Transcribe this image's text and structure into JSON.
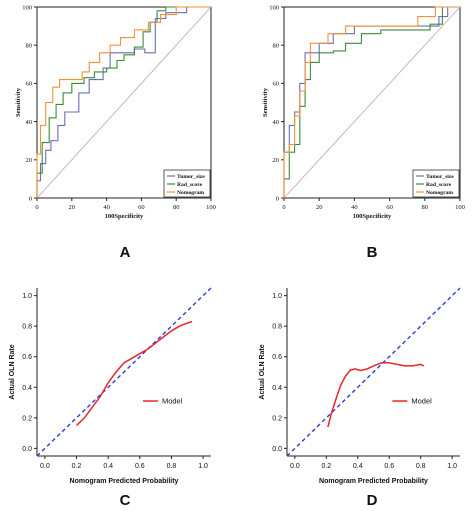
{
  "chart_data": [
    {
      "type": "line",
      "panel_label": "A",
      "xlabel": "100Specificity",
      "ylabel": "Sensitivity",
      "xlim": [
        0,
        100
      ],
      "ylim": [
        0,
        100
      ],
      "xticks": [
        "0",
        "20",
        "40",
        "60",
        "80",
        "100"
      ],
      "yticks": [
        "0",
        "20",
        "40",
        "60",
        "80",
        "100"
      ],
      "legend_position": "bottom-right",
      "diagonal_color": "#c9a9b0",
      "series": [
        {
          "name": "Tumor_size",
          "color": "#6a6fb5",
          "step": true,
          "x": [
            0,
            0,
            2,
            2,
            5,
            5,
            8,
            8,
            12,
            12,
            16,
            16,
            24,
            24,
            30,
            30,
            38,
            38,
            42,
            42,
            56,
            56,
            62,
            62,
            68,
            68,
            74,
            74,
            86,
            86,
            100
          ],
          "y": [
            0,
            9,
            9,
            18,
            18,
            25,
            25,
            30,
            30,
            38,
            38,
            45,
            45,
            55,
            55,
            62,
            62,
            68,
            68,
            76,
            76,
            78,
            78,
            76,
            76,
            94,
            94,
            97,
            97,
            100,
            100
          ]
        },
        {
          "name": "Rad_score",
          "color": "#3f8a3a",
          "step": true,
          "x": [
            0,
            0,
            3,
            3,
            7,
            7,
            11,
            11,
            15,
            15,
            20,
            20,
            27,
            27,
            33,
            33,
            40,
            40,
            46,
            46,
            50,
            50,
            56,
            56,
            61,
            61,
            65,
            65,
            69,
            69,
            74,
            74,
            86,
            86,
            100
          ],
          "y": [
            0,
            13,
            13,
            29,
            29,
            42,
            42,
            49,
            49,
            55,
            55,
            60,
            60,
            63,
            63,
            66,
            66,
            68,
            68,
            72,
            72,
            75,
            75,
            79,
            79,
            87,
            87,
            92,
            92,
            98,
            98,
            100,
            100,
            100,
            100
          ]
        },
        {
          "name": "Nomogram",
          "color": "#f2913a",
          "step": true,
          "x": [
            0,
            0,
            2,
            2,
            5,
            5,
            9,
            9,
            13,
            13,
            20,
            20,
            26,
            26,
            30,
            30,
            36,
            36,
            42,
            42,
            48,
            48,
            56,
            56,
            64,
            64,
            71,
            71,
            80,
            80,
            100
          ],
          "y": [
            0,
            23,
            23,
            38,
            38,
            50,
            50,
            58,
            58,
            62,
            62,
            62,
            62,
            66,
            66,
            71,
            71,
            76,
            76,
            80,
            80,
            84,
            84,
            88,
            88,
            92,
            92,
            96,
            96,
            100,
            100
          ]
        }
      ]
    },
    {
      "type": "line",
      "panel_label": "B",
      "xlabel": "100Specificity",
      "ylabel": "Sensitivity",
      "xlim": [
        0,
        100
      ],
      "ylim": [
        0,
        100
      ],
      "xticks": [
        "0",
        "20",
        "40",
        "60",
        "80",
        "100"
      ],
      "yticks": [
        "0",
        "20",
        "40",
        "60",
        "80",
        "100"
      ],
      "legend_position": "bottom-right",
      "diagonal_color": "#c9a9b0",
      "series": [
        {
          "name": "Tumor_size",
          "color": "#6a6fb5",
          "step": true,
          "x": [
            0,
            0,
            3,
            3,
            6,
            6,
            9,
            9,
            12,
            12,
            20,
            20,
            28,
            28,
            40,
            40,
            45,
            45,
            88,
            88,
            93,
            93,
            100
          ],
          "y": [
            0,
            24,
            24,
            38,
            38,
            45,
            45,
            60,
            60,
            76,
            76,
            81,
            81,
            86,
            86,
            90,
            90,
            90,
            90,
            95,
            95,
            100,
            100
          ]
        },
        {
          "name": "Rad_score",
          "color": "#3f8a3a",
          "step": true,
          "x": [
            0,
            0,
            3,
            3,
            6,
            6,
            9,
            9,
            12,
            12,
            15,
            15,
            20,
            20,
            28,
            28,
            35,
            35,
            44,
            44,
            55,
            55,
            66,
            66,
            75,
            75,
            83,
            83,
            90,
            90,
            100
          ],
          "y": [
            0,
            10,
            10,
            24,
            24,
            28,
            28,
            48,
            48,
            62,
            62,
            71,
            71,
            76,
            76,
            77,
            77,
            81,
            81,
            86,
            86,
            88,
            88,
            88,
            88,
            88,
            88,
            91,
            91,
            100,
            100
          ]
        },
        {
          "name": "Nomogram",
          "color": "#f2913a",
          "step": true,
          "x": [
            0,
            0,
            3,
            3,
            6,
            6,
            9,
            9,
            12,
            12,
            15,
            15,
            25,
            25,
            35,
            35,
            62,
            62,
            76,
            76,
            86,
            86,
            100
          ],
          "y": [
            0,
            24,
            24,
            28,
            28,
            43,
            43,
            56,
            56,
            71,
            71,
            81,
            81,
            86,
            86,
            90,
            90,
            90,
            90,
            95,
            95,
            100,
            100
          ]
        }
      ]
    },
    {
      "type": "line",
      "panel_label": "C",
      "xlabel": "Nomogram Predicted Probability",
      "ylabel": "Actual OLN Rate",
      "xlim": [
        -0.05,
        1.05
      ],
      "ylim": [
        -0.05,
        1.05
      ],
      "xticks": [
        "0.0",
        "0.2",
        "0.4",
        "0.6",
        "0.8",
        "1.0"
      ],
      "yticks": [
        "0.0",
        "0.2",
        "0.4",
        "0.6",
        "0.8",
        "1.0"
      ],
      "legend_position": "center-right",
      "diagonal_color": "#2b3fd6",
      "series": [
        {
          "name": "Model",
          "color": "#e8252a",
          "step": false,
          "x": [
            0.2,
            0.25,
            0.3,
            0.35,
            0.4,
            0.45,
            0.5,
            0.55,
            0.6,
            0.65,
            0.7,
            0.75,
            0.8,
            0.85,
            0.9,
            0.93
          ],
          "y": [
            0.15,
            0.2,
            0.27,
            0.34,
            0.43,
            0.5,
            0.56,
            0.59,
            0.62,
            0.65,
            0.69,
            0.73,
            0.77,
            0.8,
            0.82,
            0.83
          ]
        }
      ]
    },
    {
      "type": "line",
      "panel_label": "D",
      "xlabel": "Nomogram Predicted Probability",
      "ylabel": "Actual OLN Rate",
      "xlim": [
        -0.05,
        1.05
      ],
      "ylim": [
        -0.05,
        1.05
      ],
      "xticks": [
        "0.0",
        "0.2",
        "0.4",
        "0.6",
        "0.8",
        "1.0"
      ],
      "yticks": [
        "0.0",
        "0.2",
        "0.4",
        "0.6",
        "0.8",
        "1.0"
      ],
      "legend_position": "center-right",
      "diagonal_color": "#2b3fd6",
      "series": [
        {
          "name": "Model",
          "color": "#e8252a",
          "step": false,
          "x": [
            0.21,
            0.23,
            0.26,
            0.29,
            0.32,
            0.35,
            0.38,
            0.42,
            0.46,
            0.5,
            0.55,
            0.6,
            0.65,
            0.7,
            0.75,
            0.8,
            0.82
          ],
          "y": [
            0.14,
            0.22,
            0.32,
            0.41,
            0.47,
            0.51,
            0.52,
            0.51,
            0.52,
            0.54,
            0.56,
            0.56,
            0.55,
            0.54,
            0.54,
            0.55,
            0.54
          ]
        }
      ]
    }
  ]
}
